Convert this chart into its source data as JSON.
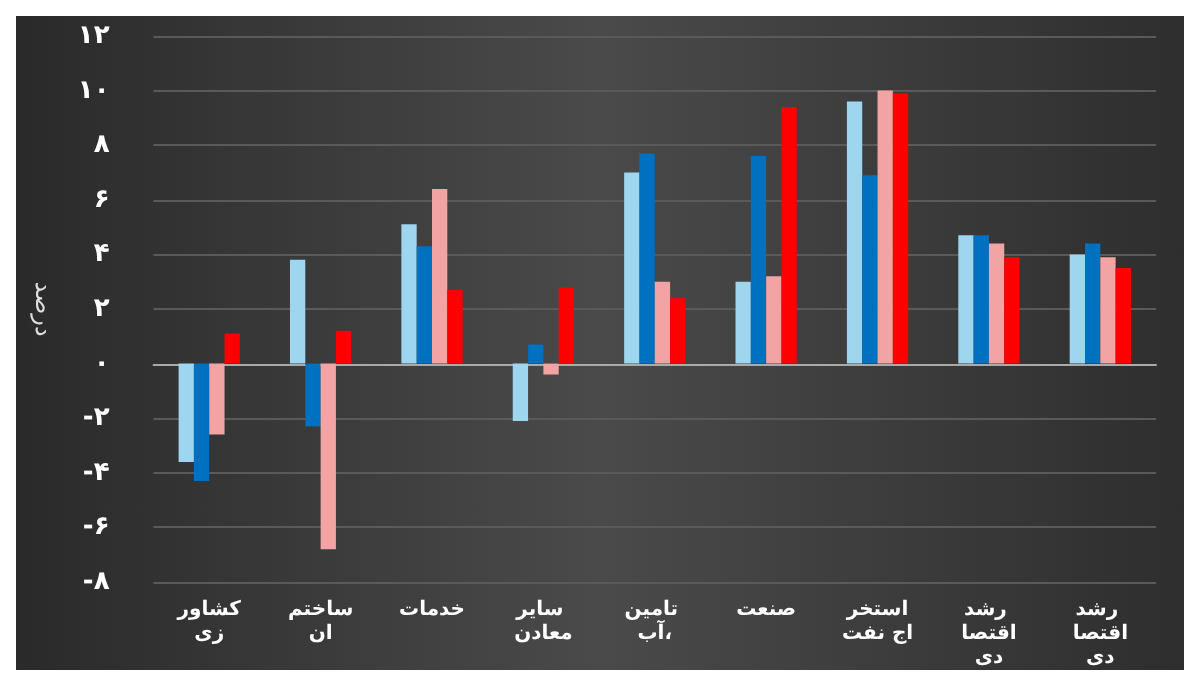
{
  "chart_data": {
    "type": "bar",
    "ylabel": "درصد",
    "categories": [
      "کشاورزی",
      "ساختمان",
      "خدمات",
      "سایر معادن",
      "تامین آب،",
      "صنعت",
      "استخراج نفت",
      "رشد اقتصادی",
      "رشد اقتصادی"
    ],
    "series": [
      {
        "color": "#9dd6ee",
        "values": [
          -3.6,
          3.8,
          5.1,
          -2.1,
          7.0,
          3.0,
          9.6,
          4.7,
          4.0
        ]
      },
      {
        "color": "#0070c0",
        "values": [
          -4.3,
          -2.3,
          4.3,
          0.7,
          7.7,
          7.6,
          6.9,
          4.7,
          4.4
        ]
      },
      {
        "color": "#f2a3a3",
        "values": [
          -2.6,
          -6.8,
          6.4,
          -0.4,
          3.0,
          3.2,
          10.0,
          4.4,
          3.9
        ]
      },
      {
        "color": "#ff0000",
        "values": [
          1.1,
          1.2,
          2.7,
          2.8,
          2.4,
          9.4,
          9.9,
          3.9,
          3.5
        ]
      }
    ],
    "ylim": [
      -8,
      12
    ],
    "yticks": [
      {
        "value": -8,
        "label": "-۸"
      },
      {
        "value": -6,
        "label": "-۶"
      },
      {
        "value": -4,
        "label": "-۴"
      },
      {
        "value": -2,
        "label": "-۲"
      },
      {
        "value": 0,
        "label": "۰"
      },
      {
        "value": 2,
        "label": "۲"
      },
      {
        "value": 4,
        "label": "۴"
      },
      {
        "value": 6,
        "label": "۶"
      },
      {
        "value": 8,
        "label": "۸"
      },
      {
        "value": 10,
        "label": "۱۰"
      },
      {
        "value": 12,
        "label": "۱۲"
      }
    ],
    "grid": "y"
  }
}
